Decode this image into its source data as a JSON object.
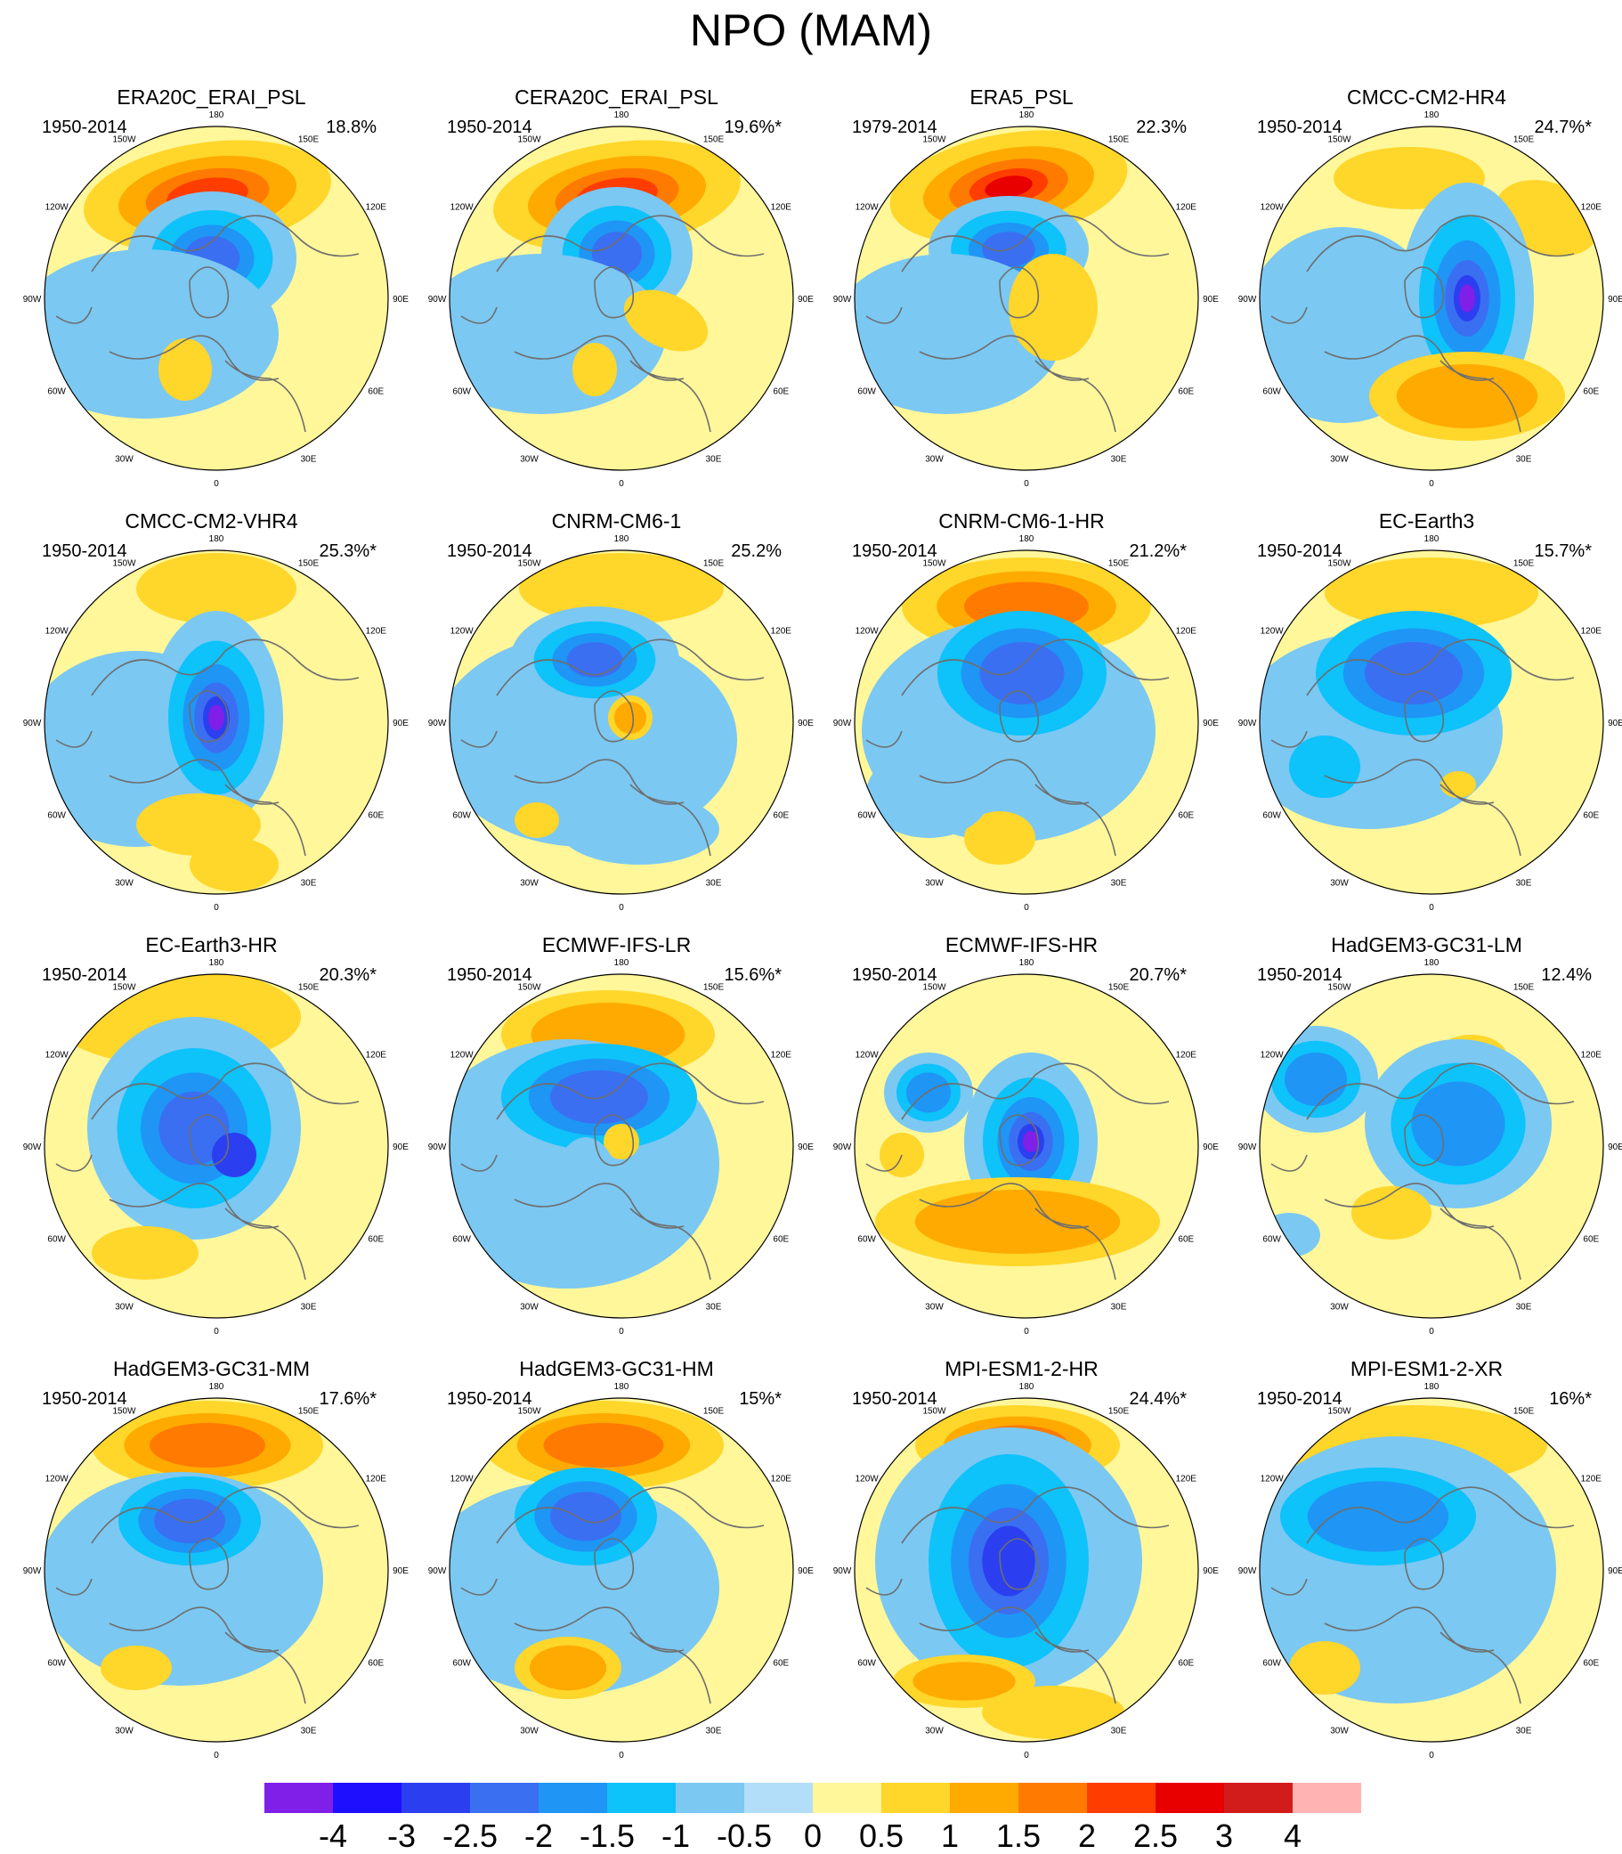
{
  "title": "NPO (MAM)",
  "lon_labels": [
    "180",
    "150E",
    "120E",
    "90E",
    "60E",
    "30E",
    "0",
    "30W",
    "60W",
    "90W",
    "120W",
    "150W"
  ],
  "colorbar": {
    "colors": [
      "#7f1fe8",
      "#1f0fff",
      "#2b3ff0",
      "#3a6ff2",
      "#1f95f5",
      "#0ec2fa",
      "#7bc8f2",
      "#b3defa",
      "#fff79a",
      "#ffd62a",
      "#ffaa00",
      "#ff7a00",
      "#ff3d00",
      "#e80000",
      "#d21c1c",
      "#ffb3b3"
    ],
    "labels": [
      "-4",
      "-3",
      "-2.5",
      "-2",
      "-1.5",
      "-1",
      "-0.5",
      "0",
      "0.5",
      "1",
      "1.5",
      "2",
      "2.5",
      "3",
      "4"
    ]
  },
  "panels": [
    {
      "name": "ERA20C_ERAI_PSL",
      "period": "1950-2014",
      "pct": "18.8%"
    },
    {
      "name": "CERA20C_ERAI_PSL",
      "period": "1950-2014",
      "pct": "19.6%*"
    },
    {
      "name": "ERA5_PSL",
      "period": "1979-2014",
      "pct": "22.3%"
    },
    {
      "name": "CMCC-CM2-HR4",
      "period": "1950-2014",
      "pct": "24.7%*"
    },
    {
      "name": "CMCC-CM2-VHR4",
      "period": "1950-2014",
      "pct": "25.3%*"
    },
    {
      "name": "CNRM-CM6-1",
      "period": "1950-2014",
      "pct": "25.2%"
    },
    {
      "name": "CNRM-CM6-1-HR",
      "period": "1950-2014",
      "pct": "21.2%*"
    },
    {
      "name": "EC-Earth3",
      "period": "1950-2014",
      "pct": "15.7%*"
    },
    {
      "name": "EC-Earth3-HR",
      "period": "1950-2014",
      "pct": "20.3%*"
    },
    {
      "name": "ECMWF-IFS-LR",
      "period": "1950-2014",
      "pct": "15.6%*"
    },
    {
      "name": "ECMWF-IFS-HR",
      "period": "1950-2014",
      "pct": "20.7%*"
    },
    {
      "name": "HadGEM3-GC31-LM",
      "period": "1950-2014",
      "pct": "12.4%"
    },
    {
      "name": "HadGEM3-GC31-MM",
      "period": "1950-2014",
      "pct": "17.6%*"
    },
    {
      "name": "HadGEM3-GC31-HM",
      "period": "1950-2014",
      "pct": "15%*"
    },
    {
      "name": "MPI-ESM1-2-HR",
      "period": "1950-2014",
      "pct": "24.4%*"
    },
    {
      "name": "MPI-ESM1-2-XR",
      "period": "1950-2014",
      "pct": "16%*"
    }
  ]
}
